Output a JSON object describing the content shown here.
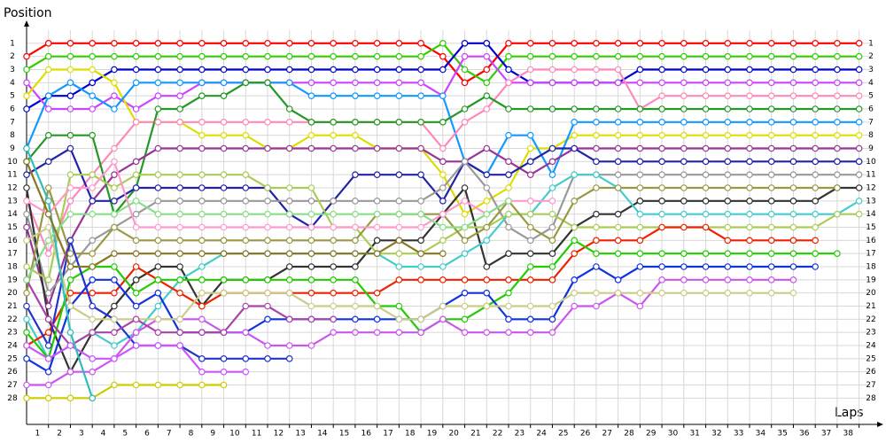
{
  "chart_data": {
    "type": "line",
    "y_label": "Position",
    "x_label": "Laps",
    "xlim": [
      0,
      38.5
    ],
    "ylim": [
      0,
      30
    ],
    "y_reversed": true,
    "grid": true,
    "xticks": [
      1,
      2,
      3,
      4,
      5,
      6,
      7,
      8,
      9,
      10,
      11,
      12,
      13,
      14,
      15,
      16,
      17,
      18,
      19,
      20,
      21,
      22,
      23,
      24,
      25,
      26,
      27,
      28,
      29,
      30,
      31,
      32,
      33,
      34,
      35,
      36,
      37,
      38
    ],
    "yticks": [
      1,
      2,
      3,
      4,
      5,
      6,
      7,
      8,
      9,
      10,
      11,
      12,
      13,
      14,
      15,
      16,
      17,
      18,
      19,
      20,
      21,
      22,
      23,
      24,
      25,
      26,
      27,
      28
    ],
    "x": [
      0,
      1,
      2,
      3,
      4,
      5,
      6,
      7,
      8,
      9,
      10,
      11,
      12,
      13,
      14,
      15,
      16,
      17,
      18,
      19,
      20,
      21,
      22,
      23,
      24,
      25,
      26,
      27,
      28,
      29,
      30,
      31,
      32,
      33,
      34,
      35,
      36,
      37,
      38
    ],
    "series": [
      {
        "color": "#ff0000",
        "values": [
          2,
          1,
          1,
          1,
          1,
          1,
          1,
          1,
          1,
          1,
          1,
          1,
          1,
          1,
          1,
          1,
          1,
          1,
          1,
          2,
          4,
          3,
          1,
          1,
          1,
          1,
          1,
          1,
          1,
          1,
          1,
          1,
          1,
          1,
          1,
          1,
          1,
          1,
          1
        ]
      },
      {
        "color": "#33cc00",
        "values": [
          3,
          2,
          2,
          2,
          2,
          2,
          2,
          2,
          2,
          2,
          2,
          2,
          2,
          2,
          2,
          2,
          2,
          2,
          2,
          1,
          3,
          4,
          2,
          2,
          2,
          2,
          2,
          2,
          2,
          2,
          2,
          2,
          2,
          2,
          2,
          2,
          2,
          2,
          2
        ]
      },
      {
        "color": "#0000cc",
        "values": [
          6,
          5,
          5,
          4,
          3,
          3,
          3,
          3,
          3,
          3,
          3,
          3,
          3,
          3,
          3,
          3,
          3,
          3,
          3,
          3,
          1,
          1,
          3,
          4,
          4,
          4,
          4,
          4,
          3,
          3,
          3,
          3,
          3,
          3,
          3,
          3,
          3,
          3,
          3
        ]
      },
      {
        "color": "#cc44ff",
        "values": [
          4,
          6,
          6,
          6,
          5,
          6,
          5,
          5,
          4,
          4,
          4,
          4,
          4,
          4,
          4,
          4,
          4,
          4,
          4,
          5,
          2,
          2,
          4,
          4,
          4,
          4,
          4,
          4,
          4,
          4,
          4,
          4,
          4,
          4,
          4,
          4,
          4,
          4,
          4
        ]
      },
      {
        "color": "#dddd00",
        "values": [
          5,
          3,
          3,
          3,
          4,
          7,
          7,
          7,
          8,
          8,
          8,
          9,
          9,
          8,
          8,
          8,
          9,
          9,
          9,
          11,
          14,
          13,
          12,
          9,
          9,
          8,
          8,
          8,
          8,
          8,
          8,
          8,
          8,
          8,
          8,
          8,
          8,
          8,
          8
        ]
      },
      {
        "color": "#1199ff",
        "values": [
          9,
          5,
          4,
          5,
          6,
          4,
          4,
          4,
          4,
          4,
          4,
          4,
          4,
          5,
          5,
          5,
          5,
          5,
          5,
          5,
          10,
          11,
          8,
          8,
          11,
          7,
          7,
          7,
          7,
          7,
          7,
          7,
          7,
          7,
          7,
          7,
          7,
          7,
          7
        ]
      },
      {
        "color": "#ff88bb",
        "values": [
          13,
          17,
          13,
          11,
          9,
          7,
          7,
          7,
          7,
          7,
          7,
          7,
          7,
          7,
          7,
          7,
          7,
          7,
          7,
          9,
          7,
          6,
          4,
          3,
          3,
          3,
          3,
          3,
          6,
          5,
          5,
          5,
          5,
          5,
          5,
          5,
          5,
          5,
          5
        ]
      },
      {
        "color": "#229922",
        "values": [
          10,
          8,
          8,
          8,
          14,
          12,
          6,
          6,
          5,
          5,
          4,
          4,
          6,
          7,
          7,
          7,
          7,
          7,
          7,
          7,
          6,
          5,
          6,
          6,
          6,
          6,
          6,
          6,
          6,
          6,
          6,
          6,
          6,
          6,
          6,
          6,
          6,
          6,
          6
        ]
      },
      {
        "color": "#993399",
        "values": [
          15,
          21,
          16,
          13,
          11,
          10,
          9,
          9,
          9,
          9,
          9,
          9,
          9,
          9,
          9,
          9,
          9,
          9,
          9,
          10,
          10,
          9,
          10,
          11,
          10,
          9,
          9,
          9,
          9,
          9,
          9,
          9,
          9,
          9,
          9,
          9,
          9,
          9,
          9
        ]
      },
      {
        "color": "#2222aa",
        "values": [
          11,
          10,
          9,
          13,
          13,
          12,
          12,
          12,
          12,
          12,
          12,
          12,
          14,
          15,
          13,
          11,
          11,
          11,
          11,
          13,
          10,
          11,
          11,
          10,
          9,
          9,
          10,
          10,
          10,
          10,
          10,
          10,
          10,
          10,
          10,
          10,
          10,
          10,
          10
        ]
      },
      {
        "color": "#999999",
        "values": [
          14,
          20,
          18,
          16,
          15,
          14,
          13,
          13,
          13,
          13,
          13,
          13,
          13,
          13,
          13,
          13,
          13,
          13,
          13,
          12,
          10,
          12,
          15,
          16,
          15,
          11,
          11,
          11,
          11,
          11,
          11,
          11,
          11,
          11,
          11,
          11,
          11,
          11,
          11
        ]
      },
      {
        "color": "#333333",
        "values": [
          12,
          22,
          26,
          23,
          21,
          19,
          18,
          18,
          21,
          19,
          19,
          19,
          18,
          18,
          18,
          18,
          16,
          16,
          16,
          14,
          12,
          18,
          17,
          17,
          17,
          15,
          14,
          14,
          13,
          13,
          13,
          13,
          13,
          13,
          13,
          13,
          13,
          12,
          12
        ]
      },
      {
        "color": "#44cccc",
        "values": [
          22,
          25,
          24,
          23,
          24,
          23,
          21,
          19,
          18,
          17,
          17,
          17,
          17,
          17,
          17,
          17,
          17,
          18,
          18,
          18,
          17,
          16,
          14,
          14,
          12,
          11,
          11,
          12,
          14,
          14,
          14,
          14,
          14,
          14,
          14,
          14,
          14,
          14,
          13
        ]
      },
      {
        "color": "#aacc55",
        "values": [
          18,
          19,
          11,
          11,
          12,
          11,
          11,
          11,
          11,
          11,
          11,
          12,
          12,
          12,
          15,
          15,
          17,
          17,
          17,
          16,
          15,
          15,
          14,
          14,
          14,
          15,
          15,
          15,
          15,
          15,
          15,
          15,
          15,
          15,
          15,
          15,
          15,
          14,
          14
        ]
      },
      {
        "color": "#999944",
        "values": [
          20,
          12,
          17,
          17,
          15,
          16,
          16,
          16,
          16,
          16,
          16,
          16,
          16,
          16,
          16,
          16,
          14,
          14,
          14,
          14,
          16,
          15,
          13,
          15,
          16,
          13,
          12,
          12,
          12,
          12,
          12,
          12,
          12,
          12,
          12,
          12,
          12,
          12,
          null
        ]
      },
      {
        "color": "#ee2200",
        "values": [
          24,
          23,
          20,
          20,
          20,
          18,
          19,
          20,
          21,
          20,
          20,
          20,
          20,
          20,
          20,
          20,
          20,
          19,
          19,
          19,
          19,
          19,
          19,
          19,
          19,
          17,
          16,
          16,
          16,
          15,
          15,
          15,
          16,
          16,
          16,
          16,
          16,
          null,
          null
        ]
      },
      {
        "color": "#22cc00",
        "values": [
          23,
          25,
          19,
          18,
          18,
          20,
          19,
          19,
          19,
          19,
          19,
          19,
          19,
          19,
          19,
          19,
          21,
          21,
          23,
          22,
          22,
          21,
          20,
          18,
          18,
          16,
          17,
          17,
          17,
          17,
          17,
          17,
          17,
          17,
          17,
          17,
          17,
          17,
          null
        ]
      },
      {
        "color": "#1133dd",
        "values": [
          25,
          26,
          21,
          19,
          19,
          21,
          20,
          23,
          23,
          23,
          23,
          22,
          22,
          22,
          22,
          22,
          22,
          22,
          22,
          21,
          20,
          20,
          22,
          22,
          22,
          19,
          18,
          19,
          18,
          18,
          18,
          18,
          18,
          18,
          18,
          18,
          18,
          null,
          null
        ]
      },
      {
        "color": "#2233cc",
        "values": [
          21,
          24,
          16,
          21,
          22,
          24,
          24,
          24,
          25,
          25,
          25,
          25,
          25,
          null,
          null,
          null,
          null,
          null,
          null,
          null,
          null,
          null,
          null,
          null,
          null,
          null,
          null,
          null,
          null,
          null,
          null,
          null,
          null,
          null,
          null,
          null,
          null,
          null,
          null
        ]
      },
      {
        "color": "#cc55ee",
        "values": [
          27,
          27,
          26,
          26,
          25,
          23,
          22,
          22,
          22,
          23,
          23,
          24,
          24,
          24,
          23,
          23,
          23,
          23,
          23,
          22,
          23,
          23,
          23,
          23,
          23,
          21,
          21,
          20,
          21,
          19,
          19,
          19,
          19,
          19,
          19,
          19,
          null,
          null,
          null
        ]
      },
      {
        "color": "#cccc88",
        "values": [
          16,
          15,
          21,
          22,
          22,
          22,
          22,
          22,
          20,
          20,
          20,
          20,
          20,
          21,
          21,
          21,
          21,
          22,
          22,
          21,
          21,
          21,
          21,
          21,
          21,
          20,
          20,
          20,
          20,
          20,
          20,
          20,
          20,
          20,
          20,
          20,
          null,
          null,
          null
        ]
      },
      {
        "color": "#aa44aa",
        "values": [
          19,
          22,
          24,
          23,
          23,
          22,
          23,
          23,
          23,
          23,
          21,
          21,
          22,
          22,
          22,
          null,
          null,
          null,
          null,
          null,
          null,
          null,
          null,
          null,
          null,
          null,
          null,
          null,
          null,
          null,
          null,
          null,
          null,
          null,
          null,
          null,
          null,
          null,
          null
        ]
      },
      {
        "color": "#cc55ff",
        "values": [
          24,
          25,
          24,
          25,
          25,
          24,
          24,
          24,
          26,
          26,
          26,
          null,
          null,
          null,
          null,
          null,
          null,
          null,
          null,
          null,
          null,
          null,
          null,
          null,
          null,
          null,
          null,
          null,
          null,
          null,
          null,
          null,
          null,
          null,
          null,
          null,
          null,
          null,
          null
        ]
      },
      {
        "color": "#cccc00",
        "values": [
          28,
          28,
          28,
          28,
          27,
          27,
          27,
          27,
          27,
          27,
          null,
          null,
          null,
          null,
          null,
          null,
          null,
          null,
          null,
          null,
          null,
          null,
          null,
          null,
          null,
          null,
          null,
          null,
          null,
          null,
          null,
          null,
          null,
          null,
          null,
          null,
          null,
          null,
          null
        ]
      },
      {
        "color": "#ff99cc",
        "values": [
          13,
          14,
          12,
          12,
          10,
          15,
          15,
          15,
          15,
          15,
          15,
          15,
          15,
          15,
          15,
          15,
          15,
          15,
          15,
          14,
          13,
          14,
          13,
          13,
          13,
          null,
          null,
          null,
          null,
          null,
          null,
          null,
          null,
          null,
          null,
          null,
          null,
          null,
          null
        ]
      },
      {
        "color": "#33bbbb",
        "values": [
          9,
          13,
          23,
          28,
          null,
          null,
          null,
          null,
          null,
          null,
          null,
          null,
          null,
          null,
          null,
          null,
          null,
          null,
          null,
          null,
          null,
          null,
          null,
          null,
          null,
          null,
          null,
          null,
          null,
          null,
          null,
          null,
          null,
          null,
          null,
          null,
          null,
          null,
          null
        ]
      },
      {
        "color": "#88dd88",
        "values": [
          19,
          16,
          14,
          14,
          14,
          13,
          14,
          14,
          14,
          14,
          14,
          14,
          14,
          14,
          14,
          14,
          14,
          14,
          14,
          15,
          15,
          14,
          13,
          null,
          null,
          null,
          null,
          null,
          null,
          null,
          null,
          null,
          null,
          null,
          null,
          null,
          null,
          null,
          null
        ]
      },
      {
        "color": "#887722",
        "values": [
          10,
          14,
          18,
          18,
          17,
          17,
          17,
          17,
          17,
          17,
          17,
          17,
          17,
          17,
          17,
          17,
          17,
          16,
          17,
          17,
          null,
          null,
          null,
          null,
          null,
          null,
          null,
          null,
          null,
          null,
          null,
          null,
          null,
          null,
          null,
          null,
          null,
          null,
          null
        ]
      }
    ]
  }
}
